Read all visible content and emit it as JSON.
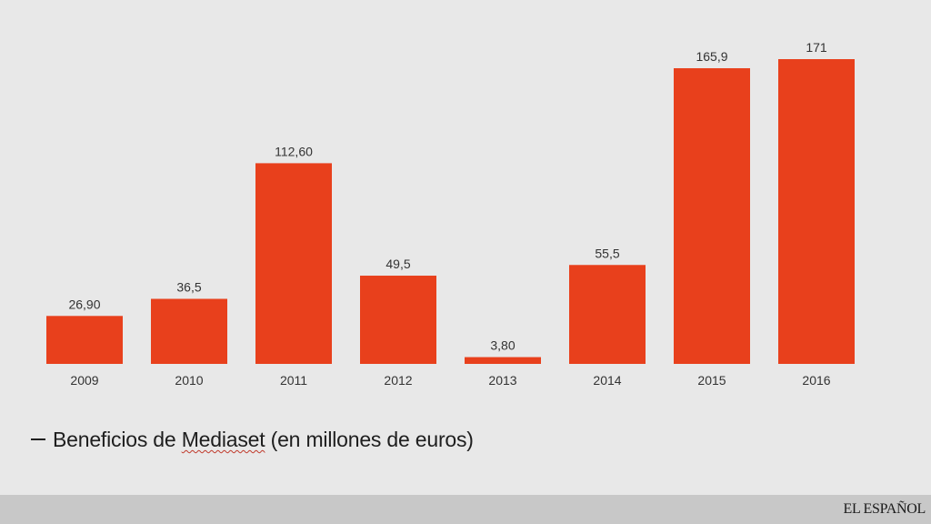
{
  "chart_data": {
    "type": "bar",
    "categories": [
      "2009",
      "2010",
      "2011",
      "2012",
      "2013",
      "2014",
      "2015",
      "2016"
    ],
    "values": [
      26.9,
      36.5,
      112.6,
      49.5,
      3.8,
      55.5,
      165.9,
      171
    ],
    "data_labels": [
      "26,90",
      "36,5",
      "112,60",
      "49,5",
      "3,80",
      "55,5",
      "165,9",
      "171"
    ],
    "title": "",
    "xlabel": "",
    "ylabel": "",
    "ylim": [
      0,
      171
    ],
    "grid": false,
    "bar_color": "#e8401c"
  },
  "legend": {
    "dash": "—",
    "text_before": "Beneficios de ",
    "text_marked": "Mediaset",
    "text_after": " (en millones de euros)"
  },
  "footer": {
    "brand": "EL ESPAÑOL"
  }
}
